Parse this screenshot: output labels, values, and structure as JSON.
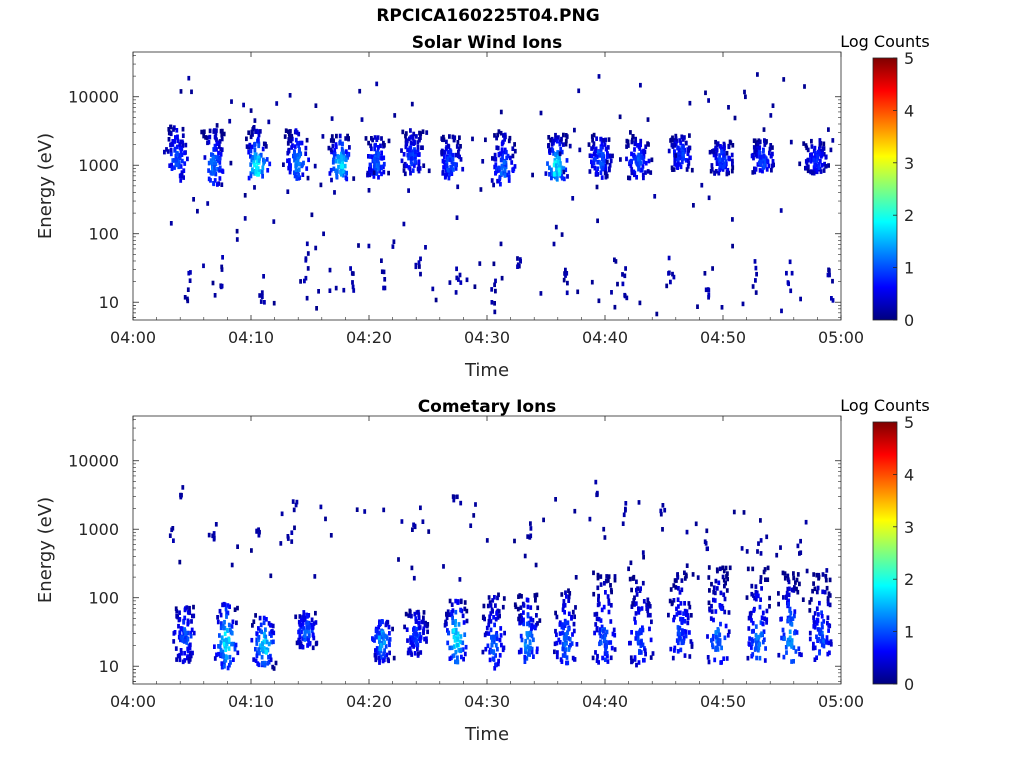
{
  "figure": {
    "filename_title": "RPCICA160225T04.PNG"
  },
  "colors": {
    "colormap": [
      "#00007f",
      "#0000ff",
      "#007fff",
      "#00ffff",
      "#7fff7f",
      "#ffff00",
      "#ff7f00",
      "#ff0000",
      "#7f0000"
    ],
    "axis": "#262626",
    "background": "#ffffff"
  },
  "chart_data": [
    {
      "type": "heatmap",
      "title": "Solar Wind Ions",
      "xlabel": "Time",
      "ylabel": "Energy (eV)",
      "x_ticks": [
        "04:00",
        "04:10",
        "04:20",
        "04:30",
        "04:40",
        "04:50",
        "05:00"
      ],
      "x_range": [
        "04:00",
        "05:00"
      ],
      "y_scale": "log",
      "y_ticks": [
        "10",
        "100",
        "1000",
        "10000"
      ],
      "y_range": [
        5.5,
        45000
      ],
      "colorbar": {
        "label": "Log Counts",
        "ticks": [
          "0",
          "1",
          "2",
          "3",
          "4",
          "5"
        ],
        "range": [
          0,
          5
        ]
      },
      "clusters": [
        {
          "t": "04:03.6",
          "e_center": 1300,
          "e_min": 600,
          "e_max": 4000,
          "peak_log": 1.1
        },
        {
          "t": "04:06.7",
          "e_center": 1100,
          "e_min": 550,
          "e_max": 3500,
          "peak_log": 1.3
        },
        {
          "t": "04:10.4",
          "e_center": 1050,
          "e_min": 700,
          "e_max": 4000,
          "peak_log": 2.0
        },
        {
          "t": "04:13.8",
          "e_center": 1200,
          "e_min": 650,
          "e_max": 3500,
          "peak_log": 1.4
        },
        {
          "t": "04:17.5",
          "e_center": 1100,
          "e_min": 650,
          "e_max": 3000,
          "peak_log": 1.9
        },
        {
          "t": "04:20.5",
          "e_center": 1200,
          "e_min": 700,
          "e_max": 3000,
          "peak_log": 1.2
        },
        {
          "t": "04:23.6",
          "e_center": 1400,
          "e_min": 800,
          "e_max": 3500,
          "peak_log": 1.0
        },
        {
          "t": "04:26.8",
          "e_center": 1100,
          "e_min": 700,
          "e_max": 3000,
          "peak_log": 1.1
        },
        {
          "t": "04:31.3",
          "e_center": 1000,
          "e_min": 550,
          "e_max": 3500,
          "peak_log": 1.2
        },
        {
          "t": "04:35.8",
          "e_center": 1050,
          "e_min": 650,
          "e_max": 3000,
          "peak_log": 2.0
        },
        {
          "t": "04:39.5",
          "e_center": 1300,
          "e_min": 700,
          "e_max": 3000,
          "peak_log": 1.1
        },
        {
          "t": "04:42.7",
          "e_center": 1200,
          "e_min": 700,
          "e_max": 3000,
          "peak_log": 1.1
        },
        {
          "t": "04:46.3",
          "e_center": 1500,
          "e_min": 900,
          "e_max": 3000,
          "peak_log": 1.0
        },
        {
          "t": "04:49.8",
          "e_center": 1300,
          "e_min": 800,
          "e_max": 2500,
          "peak_log": 1.0
        },
        {
          "t": "04:53.2",
          "e_center": 1300,
          "e_min": 800,
          "e_max": 2500,
          "peak_log": 1.0
        },
        {
          "t": "04:57.8",
          "e_center": 1300,
          "e_min": 800,
          "e_max": 2500,
          "peak_log": 0.9
        }
      ],
      "low_energy_streaks": [
        {
          "t": "04:04.5",
          "e": 20
        },
        {
          "t": "04:07.5",
          "e": 30
        },
        {
          "t": "04:10.8",
          "e": 18
        },
        {
          "t": "04:14.5",
          "e": 35
        },
        {
          "t": "04:18.5",
          "e": 25
        },
        {
          "t": "04:21.0",
          "e": 30
        },
        {
          "t": "04:24.0",
          "e": 30
        },
        {
          "t": "04:27.5",
          "e": 25
        },
        {
          "t": "04:30.5",
          "e": 15
        },
        {
          "t": "04:32.5",
          "e": 35
        },
        {
          "t": "04:36.5",
          "e": 25
        },
        {
          "t": "04:41.5",
          "e": 20
        },
        {
          "t": "04:45.5",
          "e": 30
        },
        {
          "t": "04:48.5",
          "e": 22
        },
        {
          "t": "04:52.5",
          "e": 25
        },
        {
          "t": "04:55.5",
          "e": 25
        },
        {
          "t": "04:59.0",
          "e": 20
        }
      ]
    },
    {
      "type": "heatmap",
      "title": "Cometary Ions",
      "xlabel": "Time",
      "ylabel": "Energy (eV)",
      "x_ticks": [
        "04:00",
        "04:10",
        "04:20",
        "04:30",
        "04:40",
        "04:50",
        "05:00"
      ],
      "x_range": [
        "04:00",
        "05:00"
      ],
      "y_scale": "log",
      "y_ticks": [
        "10",
        "100",
        "1000",
        "10000"
      ],
      "y_range": [
        5.5,
        45000
      ],
      "colorbar": {
        "label": "Log Counts",
        "ticks": [
          "0",
          "1",
          "2",
          "3",
          "4",
          "5"
        ],
        "range": [
          0,
          5
        ]
      },
      "clusters": [
        {
          "t": "04:04.3",
          "e_center": 30,
          "e_min": 12,
          "e_max": 80,
          "peak_log": 1.1
        },
        {
          "t": "04:07.8",
          "e_center": 25,
          "e_min": 10,
          "e_max": 90,
          "peak_log": 1.9
        },
        {
          "t": "04:11.0",
          "e_center": 22,
          "e_min": 10,
          "e_max": 60,
          "peak_log": 1.8
        },
        {
          "t": "04:14.6",
          "e_center": 35,
          "e_min": 20,
          "e_max": 70,
          "peak_log": 1.2
        },
        {
          "t": "04:21.0",
          "e_center": 25,
          "e_min": 12,
          "e_max": 50,
          "peak_log": 1.5
        },
        {
          "t": "04:23.8",
          "e_center": 30,
          "e_min": 15,
          "e_max": 70,
          "peak_log": 1.0
        },
        {
          "t": "04:27.3",
          "e_center": 28,
          "e_min": 12,
          "e_max": 100,
          "peak_log": 2.0
        },
        {
          "t": "04:30.5",
          "e_center": 22,
          "e_min": 10,
          "e_max": 120,
          "peak_log": 1.1
        },
        {
          "t": "04:33.3",
          "e_center": 25,
          "e_min": 12,
          "e_max": 120,
          "peak_log": 1.4
        },
        {
          "t": "04:36.6",
          "e_center": 25,
          "e_min": 12,
          "e_max": 150,
          "peak_log": 1.2
        },
        {
          "t": "04:39.8",
          "e_center": 28,
          "e_min": 12,
          "e_max": 250,
          "peak_log": 1.1
        },
        {
          "t": "04:42.9",
          "e_center": 28,
          "e_min": 10,
          "e_max": 250,
          "peak_log": 1.0
        },
        {
          "t": "04:46.3",
          "e_center": 30,
          "e_min": 12,
          "e_max": 250,
          "peak_log": 1.0
        },
        {
          "t": "04:49.5",
          "e_center": 25,
          "e_min": 12,
          "e_max": 300,
          "peak_log": 1.3
        },
        {
          "t": "04:52.9",
          "e_center": 25,
          "e_min": 12,
          "e_max": 300,
          "peak_log": 1.3
        },
        {
          "t": "04:55.6",
          "e_center": 25,
          "e_min": 12,
          "e_max": 250,
          "peak_log": 1.5
        },
        {
          "t": "04:58.2",
          "e_center": 28,
          "e_min": 12,
          "e_max": 250,
          "peak_log": 1.1
        }
      ],
      "high_energy_specks": [
        {
          "t": "04:03.2",
          "e": 900
        },
        {
          "t": "04:04.0",
          "e": 4000
        },
        {
          "t": "04:06.8",
          "e": 900
        },
        {
          "t": "04:10.5",
          "e": 1000
        },
        {
          "t": "04:13.6",
          "e": 2200
        },
        {
          "t": "04:13.2",
          "e": 800
        },
        {
          "t": "04:27.2",
          "e": 2800
        },
        {
          "t": "04:23.6",
          "e": 1300
        },
        {
          "t": "04:33.5",
          "e": 1000
        },
        {
          "t": "04:39.2",
          "e": 4200
        },
        {
          "t": "04:41.5",
          "e": 2200
        },
        {
          "t": "04:44.8",
          "e": 2100
        },
        {
          "t": "04:48.5",
          "e": 600
        },
        {
          "t": "04:53.0",
          "e": 600
        },
        {
          "t": "04:56.3",
          "e": 600
        }
      ]
    }
  ]
}
